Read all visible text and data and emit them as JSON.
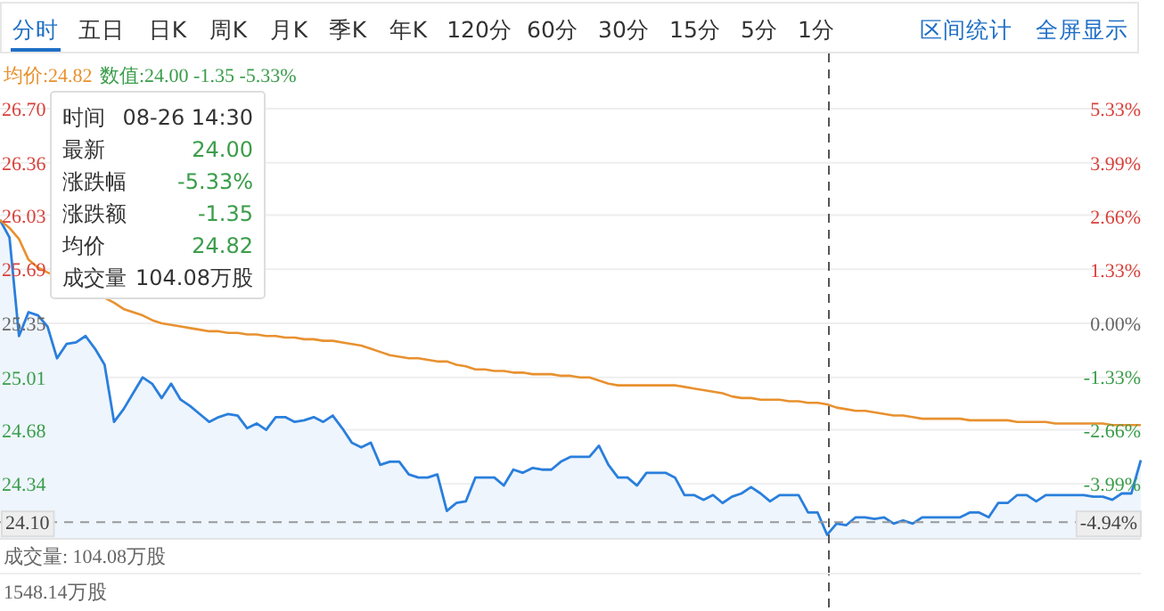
{
  "chart_data": {
    "type": "line",
    "categories": [
      null,
      null,
      null,
      null,
      null,
      null,
      null,
      null,
      null,
      null,
      null,
      null,
      null,
      null,
      null,
      null,
      null,
      null,
      null,
      null,
      null,
      null,
      null,
      null,
      null,
      null,
      null,
      null,
      null,
      null,
      null,
      null,
      null,
      null,
      null,
      null,
      null,
      null,
      null,
      null,
      null,
      null,
      null,
      null,
      null,
      null,
      null,
      null,
      null,
      null,
      null,
      null,
      null,
      null,
      null,
      null,
      null,
      null,
      null,
      null,
      null,
      null,
      null,
      null,
      null,
      null,
      null,
      null,
      null,
      null,
      null,
      null,
      null,
      null,
      null,
      null,
      null,
      null,
      null,
      null,
      null,
      null,
      null,
      null,
      null,
      null,
      null,
      null,
      null,
      null,
      null,
      null,
      null,
      null,
      null,
      null,
      null,
      null,
      null,
      null,
      null,
      null,
      null,
      null,
      null,
      null,
      null,
      null,
      null,
      null,
      null,
      null,
      null,
      null,
      null,
      null,
      null,
      null,
      null,
      null,
      null
    ],
    "ylim": [
      24.0,
      26.7
    ],
    "yticks": [
      {
        "value": 26.7,
        "label": "26.70"
      },
      {
        "value": 26.36,
        "label": "26.36"
      },
      {
        "value": 26.03,
        "label": "26.03"
      },
      {
        "value": 25.69,
        "label": "25.69"
      },
      {
        "value": 25.35,
        "label": "25.35"
      },
      {
        "value": 25.01,
        "label": "25.01"
      },
      {
        "value": 24.68,
        "label": "24.68"
      },
      {
        "value": 24.34,
        "label": "24.34"
      }
    ],
    "y2lim": [
      -5.33,
      5.33
    ],
    "y2ticks": [
      {
        "value": 5.33,
        "label": "5.33%"
      },
      {
        "value": 3.99,
        "label": "3.99%"
      },
      {
        "value": 2.66,
        "label": "2.66%"
      },
      {
        "value": 1.33,
        "label": "1.33%"
      },
      {
        "value": 0,
        "label": "0.00%"
      },
      {
        "value": -1.33,
        "label": "-1.33%"
      },
      {
        "value": -2.66,
        "label": "-2.66%"
      },
      {
        "value": -3.99,
        "label": "-3.99%"
      }
    ],
    "grid": "y",
    "series": [
      {
        "type": "area",
        "color": "#2a7fdc",
        "values": [
          26.0,
          25.89,
          25.27,
          25.42,
          25.4,
          25.33,
          25.13,
          25.22,
          25.23,
          25.27,
          25.19,
          25.09,
          24.73,
          24.81,
          24.91,
          25.01,
          24.97,
          24.88,
          24.97,
          24.87,
          24.83,
          24.78,
          24.73,
          24.76,
          24.78,
          24.77,
          24.69,
          24.72,
          24.68,
          24.76,
          24.76,
          24.73,
          24.74,
          24.76,
          24.73,
          24.77,
          24.69,
          24.6,
          24.57,
          24.6,
          24.46,
          24.48,
          24.48,
          24.4,
          24.38,
          24.38,
          24.4,
          24.17,
          24.22,
          24.23,
          24.38,
          24.38,
          24.38,
          24.33,
          24.43,
          24.41,
          24.44,
          24.43,
          24.43,
          24.48,
          24.51,
          24.51,
          24.51,
          24.58,
          24.46,
          24.38,
          24.38,
          24.33,
          24.41,
          24.41,
          24.41,
          24.38,
          24.27,
          24.27,
          24.24,
          24.27,
          24.22,
          24.26,
          24.28,
          24.32,
          24.28,
          24.23,
          24.27,
          24.27,
          24.27,
          24.16,
          24.16,
          24.02,
          24.09,
          24.08,
          24.13,
          24.13,
          24.12,
          24.13,
          24.09,
          24.11,
          24.09,
          24.13,
          24.13,
          24.13,
          24.13,
          24.13,
          24.16,
          24.16,
          24.13,
          24.22,
          24.22,
          24.27,
          24.27,
          24.23,
          24.27,
          24.27,
          24.27,
          24.27,
          24.27,
          24.26,
          24.26,
          24.24,
          24.28,
          24.28,
          24.49
        ]
      },
      {
        "type": "line",
        "color": "#e8912f",
        "values": [
          26.0,
          25.95,
          25.88,
          25.75,
          25.7,
          25.67,
          null,
          null,
          null,
          null,
          null,
          25.51,
          25.48,
          25.44,
          25.42,
          25.4,
          25.37,
          25.35,
          25.34,
          25.33,
          25.32,
          25.31,
          25.3,
          25.3,
          25.29,
          25.29,
          25.28,
          25.28,
          25.27,
          25.27,
          25.26,
          25.26,
          25.25,
          25.25,
          25.24,
          25.24,
          25.23,
          25.22,
          25.21,
          25.19,
          25.17,
          25.15,
          25.14,
          25.13,
          25.13,
          25.12,
          25.11,
          25.11,
          25.09,
          25.08,
          25.06,
          25.06,
          25.05,
          25.05,
          25.04,
          25.04,
          25.03,
          25.03,
          25.03,
          25.02,
          25.02,
          25.01,
          25.01,
          24.99,
          24.97,
          24.96,
          24.96,
          24.96,
          24.96,
          24.96,
          24.96,
          24.96,
          24.95,
          24.94,
          24.93,
          24.92,
          24.91,
          24.89,
          24.88,
          24.88,
          24.87,
          24.87,
          24.87,
          24.86,
          24.86,
          24.85,
          24.85,
          24.84,
          24.82,
          24.81,
          24.8,
          24.8,
          24.79,
          24.78,
          24.77,
          24.77,
          24.76,
          24.75,
          24.75,
          24.75,
          24.75,
          24.75,
          24.74,
          24.74,
          24.74,
          24.74,
          24.74,
          24.73,
          24.73,
          24.73,
          24.73,
          24.72,
          24.72,
          24.72,
          24.72,
          24.72,
          24.72,
          24.71,
          24.71,
          24.71,
          24.71
        ]
      }
    ],
    "ref_lines": [
      {
        "axis": "y",
        "value": 24.1,
        "label": "24.10",
        "line_style": "dashed",
        "color": "#999999"
      }
    ],
    "annotations": [
      "分时",
      "五日",
      "日K",
      "周K",
      "月K",
      "季K",
      "年K",
      "120分",
      "60分",
      "30分",
      "15分",
      "5分",
      "1分",
      "区间统计",
      "全屏显示",
      "均价:24.82",
      "数值:24.00 -1.35 -5.33%",
      "时间",
      "08-26 14:30",
      "最新",
      "24.00",
      "涨跌幅",
      "-5.33%",
      "涨跌额",
      "-1.35",
      "均价",
      "24.82",
      "成交量",
      "104.08万股",
      "成交量: 104.08万股",
      "1548.14万股",
      "-4.94%"
    ]
  }
}
